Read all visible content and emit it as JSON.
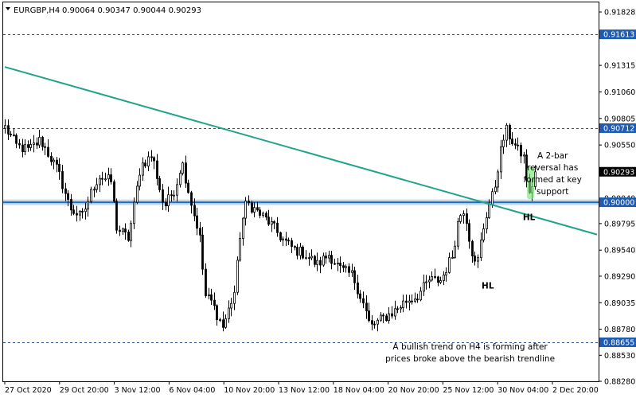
{
  "header": {
    "symbol": "EURGBP,H4",
    "quote": "0.90064 0.90347 0.90044 0.90293"
  },
  "colors": {
    "background": "#ffffff",
    "candle": "#000000",
    "trendline": "#20a38a",
    "support_line": "#1e6fbf",
    "support_glow": "#b9cde6",
    "dotted_line": "#2a4f8a",
    "label_box": "#1e5cb3",
    "current_box": "#000000",
    "highlight": "#7be37b"
  },
  "chart_data": {
    "type": "candlestick",
    "symbol": "EURGBP",
    "timeframe": "H4",
    "ylim": [
      0.8828,
      0.9192
    ],
    "y_ticks": [
      "0.91828",
      "0.91315",
      "0.91060",
      "0.90805",
      "0.90550",
      "0.90040",
      "0.89795",
      "0.89540",
      "0.89290",
      "0.89035",
      "0.88780",
      "0.88530",
      "0.88280"
    ],
    "x_ticks": [
      "27 Oct 2020",
      "29 Oct 20:00",
      "3 Nov 12:00",
      "6 Nov 04:00",
      "10 Nov 20:00",
      "13 Nov 12:00",
      "18 Nov 04:00",
      "20 Nov 20:00",
      "25 Nov 12:00",
      "30 Nov 04:00",
      "2 Dec 20:00"
    ],
    "price_labels": [
      {
        "value": 0.91613,
        "text": "0.91613",
        "kind": "dotted"
      },
      {
        "value": 0.90712,
        "text": "0.90712",
        "kind": "dotted"
      },
      {
        "value": 0.90293,
        "text": "0.90293",
        "kind": "current"
      },
      {
        "value": 0.9,
        "text": "0.90000",
        "kind": "support"
      },
      {
        "value": 0.88655,
        "text": "0.88655",
        "kind": "dotted"
      }
    ],
    "trendline": {
      "start": [
        0,
        0.913
      ],
      "end": [
        100,
        0.8969
      ]
    },
    "key_points": [
      [
        0,
        0.9072
      ],
      [
        2,
        0.9054
      ],
      [
        4,
        0.905
      ],
      [
        6,
        0.906
      ],
      [
        8,
        0.904
      ],
      [
        9,
        0.903
      ],
      [
        11,
        0.8995
      ],
      [
        13,
        0.8985
      ],
      [
        15,
        0.9015
      ],
      [
        16,
        0.9025
      ],
      [
        18,
        0.902
      ],
      [
        19,
        0.8975
      ],
      [
        21,
        0.8965
      ],
      [
        23,
        0.9035
      ],
      [
        25,
        0.9045
      ],
      [
        27,
        0.8995
      ],
      [
        29,
        0.9015
      ],
      [
        30,
        0.904
      ],
      [
        32,
        0.899
      ],
      [
        33,
        0.897
      ],
      [
        34,
        0.891
      ],
      [
        35,
        0.8905
      ],
      [
        37,
        0.888
      ],
      [
        39,
        0.8915
      ],
      [
        40,
        0.8975
      ],
      [
        41,
        0.9
      ],
      [
        43,
        0.899
      ],
      [
        45,
        0.898
      ],
      [
        47,
        0.8965
      ],
      [
        49,
        0.8955
      ],
      [
        51,
        0.895
      ],
      [
        53,
        0.894
      ],
      [
        55,
        0.895
      ],
      [
        57,
        0.8935
      ],
      [
        59,
        0.893
      ],
      [
        61,
        0.89
      ],
      [
        62,
        0.888
      ],
      [
        64,
        0.8888
      ],
      [
        66,
        0.8895
      ],
      [
        68,
        0.8905
      ],
      [
        70,
        0.891
      ],
      [
        72,
        0.8925
      ],
      [
        74,
        0.8925
      ],
      [
        76,
        0.895
      ],
      [
        77,
        0.8985
      ],
      [
        78,
        0.8995
      ],
      [
        79,
        0.896
      ],
      [
        80,
        0.8935
      ],
      [
        81,
        0.897
      ],
      [
        82,
        0.8995
      ],
      [
        83,
        0.901
      ],
      [
        84,
        0.9045
      ],
      [
        85,
        0.907
      ],
      [
        86,
        0.906
      ],
      [
        87,
        0.905
      ],
      [
        88,
        0.9045
      ],
      [
        89,
        0.9005
      ],
      [
        90,
        0.9029
      ]
    ],
    "annotations": [
      {
        "lines": [
          "A 2-bar",
          "reversal has",
          "formed at key",
          "support"
        ],
        "at": [
          93,
          0.9025
        ],
        "align": "middle"
      },
      {
        "lines": [
          "HL"
        ],
        "at": [
          89,
          0.8983
        ],
        "align": "middle",
        "bold": true
      },
      {
        "lines": [
          "HL"
        ],
        "at": [
          82,
          0.8917
        ],
        "align": "middle",
        "bold": true
      },
      {
        "lines": [
          "A bullish trend on H4 is forming after",
          "prices broke above the bearish trendline"
        ],
        "at": [
          79,
          0.8853
        ],
        "align": "middle"
      }
    ]
  }
}
